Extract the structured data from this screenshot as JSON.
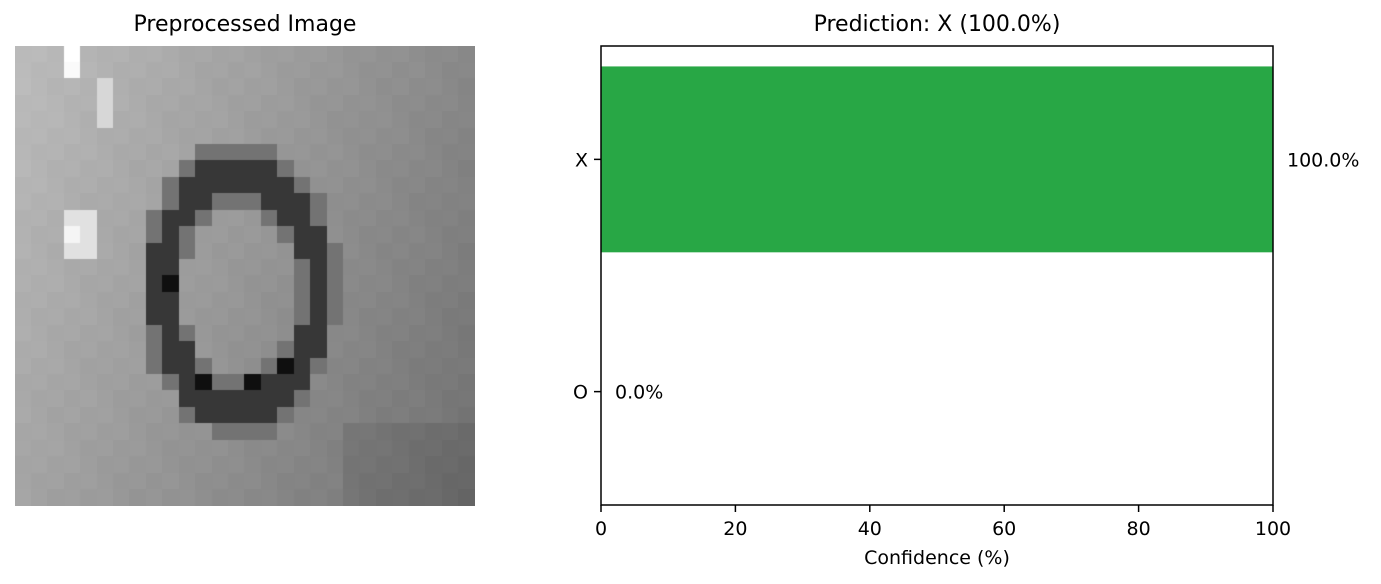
{
  "image_panel": {
    "title": "Preprocessed Image",
    "grid_size": 28
  },
  "chart_data": {
    "type": "bar",
    "orientation": "horizontal",
    "title": "Prediction: X (100.0%)",
    "categories": [
      "X",
      "O"
    ],
    "values": [
      100.0,
      0.0
    ],
    "value_labels": [
      "100.0%",
      "0.0%"
    ],
    "xlabel": "Confidence (%)",
    "ylabel": "",
    "xlim": [
      0,
      100
    ],
    "xticks": [
      0,
      20,
      40,
      60,
      80,
      100
    ],
    "bar_color": "#28a745",
    "grid": false
  }
}
